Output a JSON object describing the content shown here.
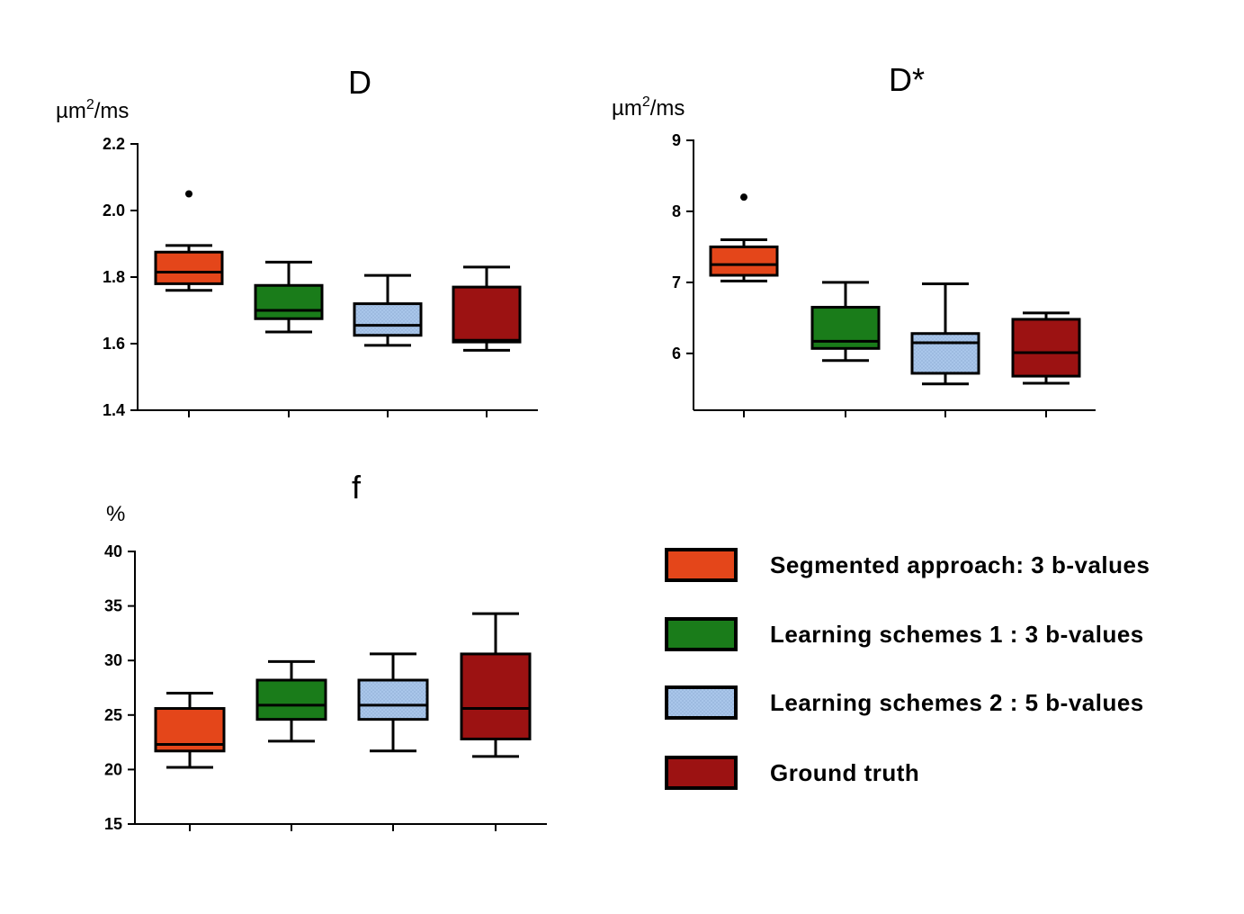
{
  "chart_data": [
    {
      "type": "boxplot",
      "title": "D",
      "ylabel": "µm²/ms",
      "unit_base": "µm",
      "unit_sup": "2",
      "unit_rest": "/ms",
      "ylim": [
        1.4,
        2.2
      ],
      "yticks": [
        "1.4",
        "1.6",
        "1.8",
        "2.0",
        "2.2"
      ],
      "ytick_values": [
        1.4,
        1.6,
        1.8,
        2.0,
        2.2
      ],
      "series": [
        {
          "name": "Segmented approach: 3 b-values",
          "min": 1.76,
          "q1": 1.78,
          "median": 1.815,
          "q3": 1.875,
          "max": 1.895,
          "outliers": [
            2.05
          ]
        },
        {
          "name": "Learning schemes 1 : 3 b-values",
          "min": 1.635,
          "q1": 1.675,
          "median": 1.7,
          "q3": 1.775,
          "max": 1.845,
          "outliers": []
        },
        {
          "name": "Learning schemes 2 : 5 b-values",
          "min": 1.595,
          "q1": 1.625,
          "median": 1.655,
          "q3": 1.72,
          "max": 1.805,
          "outliers": []
        },
        {
          "name": "Ground truth",
          "min": 1.58,
          "q1": 1.605,
          "median": 1.61,
          "q3": 1.77,
          "max": 1.83,
          "outliers": []
        }
      ]
    },
    {
      "type": "boxplot",
      "title": "D*",
      "ylabel": "µm²/ms",
      "unit_base": "µm",
      "unit_sup": "2",
      "unit_rest": "/ms",
      "ylim": [
        5.2,
        9
      ],
      "yticks": [
        "6",
        "7",
        "8",
        "9"
      ],
      "ytick_values": [
        6,
        7,
        8,
        9
      ],
      "series": [
        {
          "name": "Segmented approach: 3 b-values",
          "min": 7.02,
          "q1": 7.1,
          "median": 7.25,
          "q3": 7.5,
          "max": 7.6,
          "outliers": [
            8.2
          ]
        },
        {
          "name": "Learning schemes 1 : 3 b-values",
          "min": 5.9,
          "q1": 6.07,
          "median": 6.17,
          "q3": 6.65,
          "max": 7.0,
          "outliers": []
        },
        {
          "name": "Learning schemes 2 : 5 b-values",
          "min": 5.57,
          "q1": 5.72,
          "median": 6.15,
          "q3": 6.28,
          "max": 6.98,
          "outliers": []
        },
        {
          "name": "Ground truth",
          "min": 5.58,
          "q1": 5.68,
          "median": 6.01,
          "q3": 6.48,
          "max": 6.57,
          "outliers": []
        }
      ]
    },
    {
      "type": "boxplot",
      "title": "f",
      "ylabel": "%",
      "unit_base": "%",
      "unit_sup": "",
      "unit_rest": "",
      "ylim": [
        15,
        40
      ],
      "yticks": [
        "15",
        "20",
        "25",
        "30",
        "35",
        "40"
      ],
      "ytick_values": [
        15,
        20,
        25,
        30,
        35,
        40
      ],
      "series": [
        {
          "name": "Segmented approach: 3 b-values",
          "min": 20.2,
          "q1": 21.7,
          "median": 22.3,
          "q3": 25.6,
          "max": 27.0,
          "outliers": []
        },
        {
          "name": "Learning schemes 1 : 3 b-values",
          "min": 22.6,
          "q1": 24.6,
          "median": 25.9,
          "q3": 28.2,
          "max": 29.9,
          "outliers": []
        },
        {
          "name": "Learning schemes 2 : 5 b-values",
          "min": 21.7,
          "q1": 24.6,
          "median": 25.9,
          "q3": 28.2,
          "max": 30.6,
          "outliers": []
        },
        {
          "name": "Ground truth",
          "min": 21.2,
          "q1": 22.8,
          "median": 25.6,
          "q3": 30.6,
          "max": 34.3,
          "outliers": []
        }
      ]
    }
  ],
  "legend": [
    {
      "label": "Segmented approach: 3 b-values",
      "color": "#e4461a",
      "pattern": false
    },
    {
      "label": "Learning schemes 1 : 3 b-values",
      "color": "#1a7c1a",
      "pattern": false
    },
    {
      "label": "Learning schemes 2 : 5 b-values",
      "color": "#a9c6ea",
      "pattern": true
    },
    {
      "label": "Ground truth",
      "color": "#9c1212",
      "pattern": false
    }
  ]
}
